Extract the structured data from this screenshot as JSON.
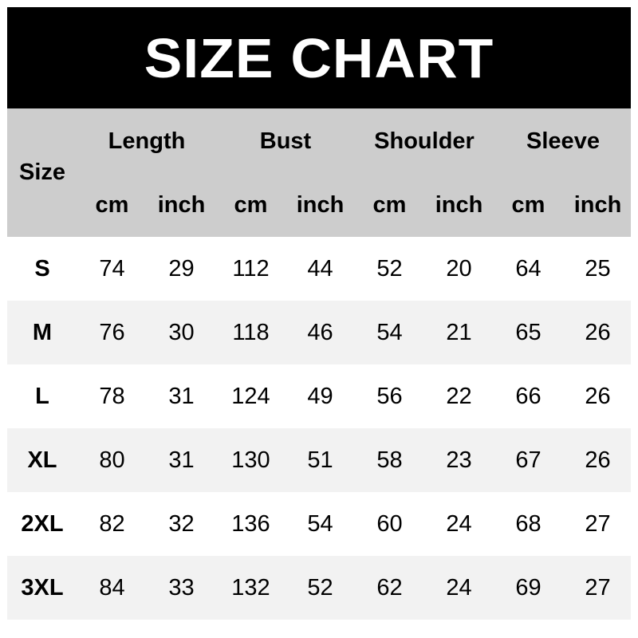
{
  "title": "SIZE CHART",
  "colors": {
    "title_bg": "#000000",
    "title_text": "#ffffff",
    "header_bg": "#cdcdcd",
    "alt_row_bg": "#f2f2f2"
  },
  "chart_data": {
    "type": "table",
    "title": "SIZE CHART",
    "size_header": "Size",
    "groups": [
      "Length",
      "Bust",
      "Shoulder",
      "Sleeve"
    ],
    "units": [
      "cm",
      "inch",
      "cm",
      "inch",
      "cm",
      "inch",
      "cm",
      "inch"
    ],
    "rows": [
      {
        "size": "S",
        "values": [
          "74",
          "29",
          "112",
          "44",
          "52",
          "20",
          "64",
          "25"
        ]
      },
      {
        "size": "M",
        "values": [
          "76",
          "30",
          "118",
          "46",
          "54",
          "21",
          "65",
          "26"
        ]
      },
      {
        "size": "L",
        "values": [
          "78",
          "31",
          "124",
          "49",
          "56",
          "22",
          "66",
          "26"
        ]
      },
      {
        "size": "XL",
        "values": [
          "80",
          "31",
          "130",
          "51",
          "58",
          "23",
          "67",
          "26"
        ]
      },
      {
        "size": "2XL",
        "values": [
          "82",
          "32",
          "136",
          "54",
          "60",
          "24",
          "68",
          "27"
        ]
      },
      {
        "size": "3XL",
        "values": [
          "84",
          "33",
          "132",
          "52",
          "62",
          "24",
          "69",
          "27"
        ]
      }
    ]
  }
}
